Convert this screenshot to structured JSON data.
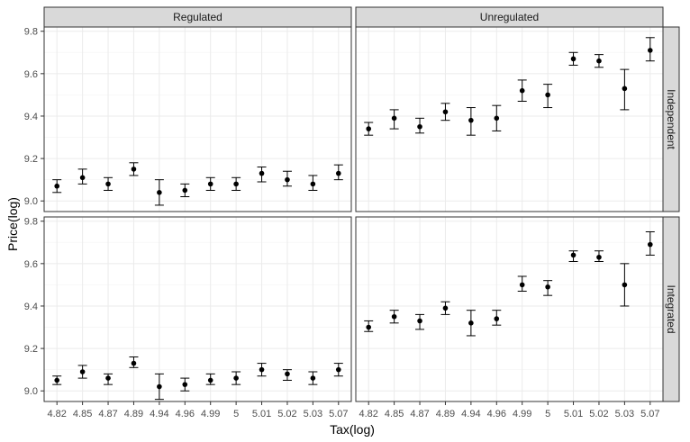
{
  "chart_data": {
    "type": "scatter",
    "style": "faceted point with error bars (mean ± range)",
    "xlabel": "Tax(log)",
    "ylabel": "Price(log)",
    "categories": [
      "4.82",
      "4.85",
      "4.87",
      "4.89",
      "4.94",
      "4.96",
      "4.99",
      "5",
      "5.01",
      "5.02",
      "5.03",
      "5.07"
    ],
    "ylim": [
      8.95,
      9.82
    ],
    "yticks": [
      9.0,
      9.2,
      9.4,
      9.6,
      9.8
    ],
    "ytick_labels": [
      "9.0",
      "9.2",
      "9.4",
      "9.6",
      "9.8"
    ],
    "grid": true,
    "facet_columns": [
      "Regulated",
      "Unregulated"
    ],
    "facet_rows": [
      "Independent",
      "Integrated"
    ],
    "panels": [
      {
        "column": "Regulated",
        "row": "Independent",
        "y": [
          9.07,
          9.11,
          9.08,
          9.15,
          9.04,
          9.05,
          9.08,
          9.08,
          9.13,
          9.1,
          9.08,
          9.13
        ],
        "lo": [
          9.04,
          9.08,
          9.05,
          9.12,
          8.98,
          9.02,
          9.05,
          9.05,
          9.09,
          9.07,
          9.05,
          9.1
        ],
        "hi": [
          9.1,
          9.15,
          9.11,
          9.18,
          9.1,
          9.08,
          9.11,
          9.11,
          9.16,
          9.14,
          9.12,
          9.17
        ]
      },
      {
        "column": "Unregulated",
        "row": "Independent",
        "y": [
          9.34,
          9.39,
          9.35,
          9.42,
          9.38,
          9.39,
          9.52,
          9.5,
          9.67,
          9.66,
          9.53,
          9.71
        ],
        "lo": [
          9.31,
          9.34,
          9.32,
          9.38,
          9.31,
          9.33,
          9.47,
          9.44,
          9.64,
          9.63,
          9.43,
          9.66
        ],
        "hi": [
          9.37,
          9.43,
          9.39,
          9.46,
          9.44,
          9.45,
          9.57,
          9.55,
          9.7,
          9.69,
          9.62,
          9.77
        ]
      },
      {
        "column": "Regulated",
        "row": "Integrated",
        "y": [
          9.05,
          9.09,
          9.06,
          9.13,
          9.02,
          9.03,
          9.05,
          9.06,
          9.1,
          9.08,
          9.06,
          9.1
        ],
        "lo": [
          9.03,
          9.06,
          9.03,
          9.11,
          8.96,
          9.0,
          9.03,
          9.03,
          9.07,
          9.05,
          9.03,
          9.07
        ],
        "hi": [
          9.07,
          9.12,
          9.08,
          9.16,
          9.08,
          9.06,
          9.08,
          9.09,
          9.13,
          9.1,
          9.09,
          9.13
        ]
      },
      {
        "column": "Unregulated",
        "row": "Integrated",
        "y": [
          9.3,
          9.35,
          9.33,
          9.39,
          9.32,
          9.34,
          9.5,
          9.49,
          9.64,
          9.63,
          9.5,
          9.69
        ],
        "lo": [
          9.28,
          9.32,
          9.29,
          9.36,
          9.26,
          9.31,
          9.47,
          9.45,
          9.61,
          9.61,
          9.4,
          9.64
        ],
        "hi": [
          9.33,
          9.38,
          9.36,
          9.42,
          9.38,
          9.38,
          9.54,
          9.52,
          9.66,
          9.66,
          9.6,
          9.75
        ]
      }
    ],
    "colors": {
      "point": "#000000",
      "panel_border": "#333333",
      "strip_fill": "#d9d9d9",
      "grid_major": "#ebebeb",
      "grid_minor": "#f5f5f5",
      "background": "#ffffff"
    }
  }
}
